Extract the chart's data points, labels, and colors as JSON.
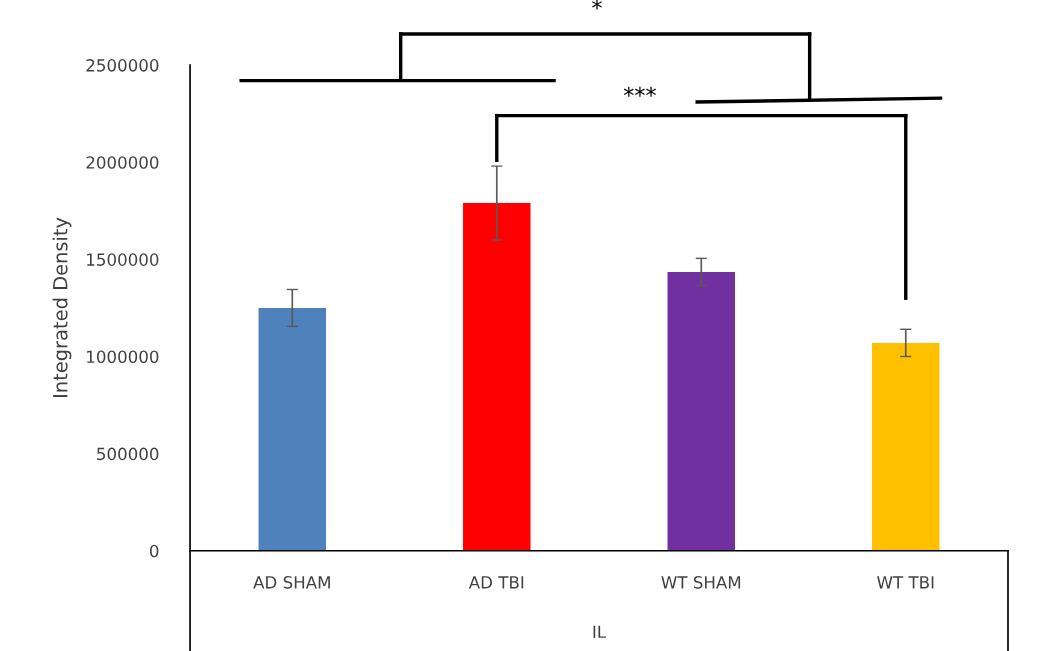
{
  "chart_data": {
    "type": "bar",
    "categories": [
      "AD SHAM",
      "AD TBI",
      "WT SHAM",
      "WT TBI"
    ],
    "values": [
      1250000,
      1790000,
      1435000,
      1070000
    ],
    "errors": [
      95000,
      190000,
      70000,
      70000
    ],
    "colors": [
      "#4f81bd",
      "#ff0000",
      "#7030a0",
      "#ffc000"
    ],
    "xlabel": "IL",
    "ylabel": "Integrated Density",
    "ylim": [
      0,
      2500000
    ],
    "yticks": [
      0,
      500000,
      1000000,
      1500000,
      2000000,
      2500000
    ],
    "annotations": [
      "*",
      "***"
    ],
    "grid": false,
    "legend": false
  }
}
